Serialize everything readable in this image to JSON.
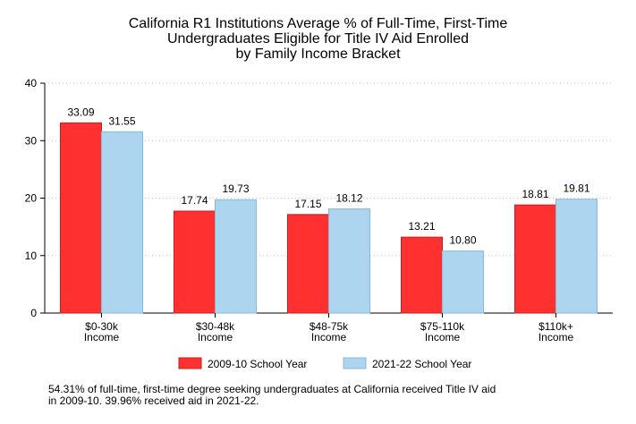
{
  "chart_data": {
    "type": "bar",
    "title_lines": [
      "California R1 Institutions Average % of Full-Time, First-Time",
      "Undergraduates Eligible for Title IV Aid Enrolled",
      "by Family Income Bracket"
    ],
    "categories": [
      [
        "$0-30k",
        "Income"
      ],
      [
        "$30-48k",
        "Income"
      ],
      [
        "$48-75k",
        "Income"
      ],
      [
        "$75-110k",
        "Income"
      ],
      [
        "$110k+",
        "Income"
      ]
    ],
    "series": [
      {
        "name": "2009-10 School Year",
        "values": [
          33.09,
          17.74,
          17.15,
          13.21,
          18.81
        ],
        "labels": [
          "33.09",
          "17.74",
          "17.15",
          "13.21",
          "18.81"
        ],
        "color": "#ff3030",
        "stroke": "#c81c1c"
      },
      {
        "name": "2021-22 School Year",
        "values": [
          31.55,
          19.73,
          18.12,
          10.8,
          19.81
        ],
        "labels": [
          "31.55",
          "19.73",
          "18.12",
          "10.80",
          "19.81"
        ],
        "color": "#aed5f0",
        "stroke": "#86b8dc"
      }
    ],
    "ylim": [
      0,
      40
    ],
    "yticks": [
      "0",
      "10",
      "20",
      "30",
      "40"
    ],
    "xlabel": "",
    "ylabel": "",
    "grid": true,
    "legend_position": "bottom"
  },
  "footnote_lines": [
    "54.31% of full-time, first-time degree seeking undergraduates at California received Title IV aid",
    "in 2009-10. 39.96% received aid in 2021-22."
  ]
}
